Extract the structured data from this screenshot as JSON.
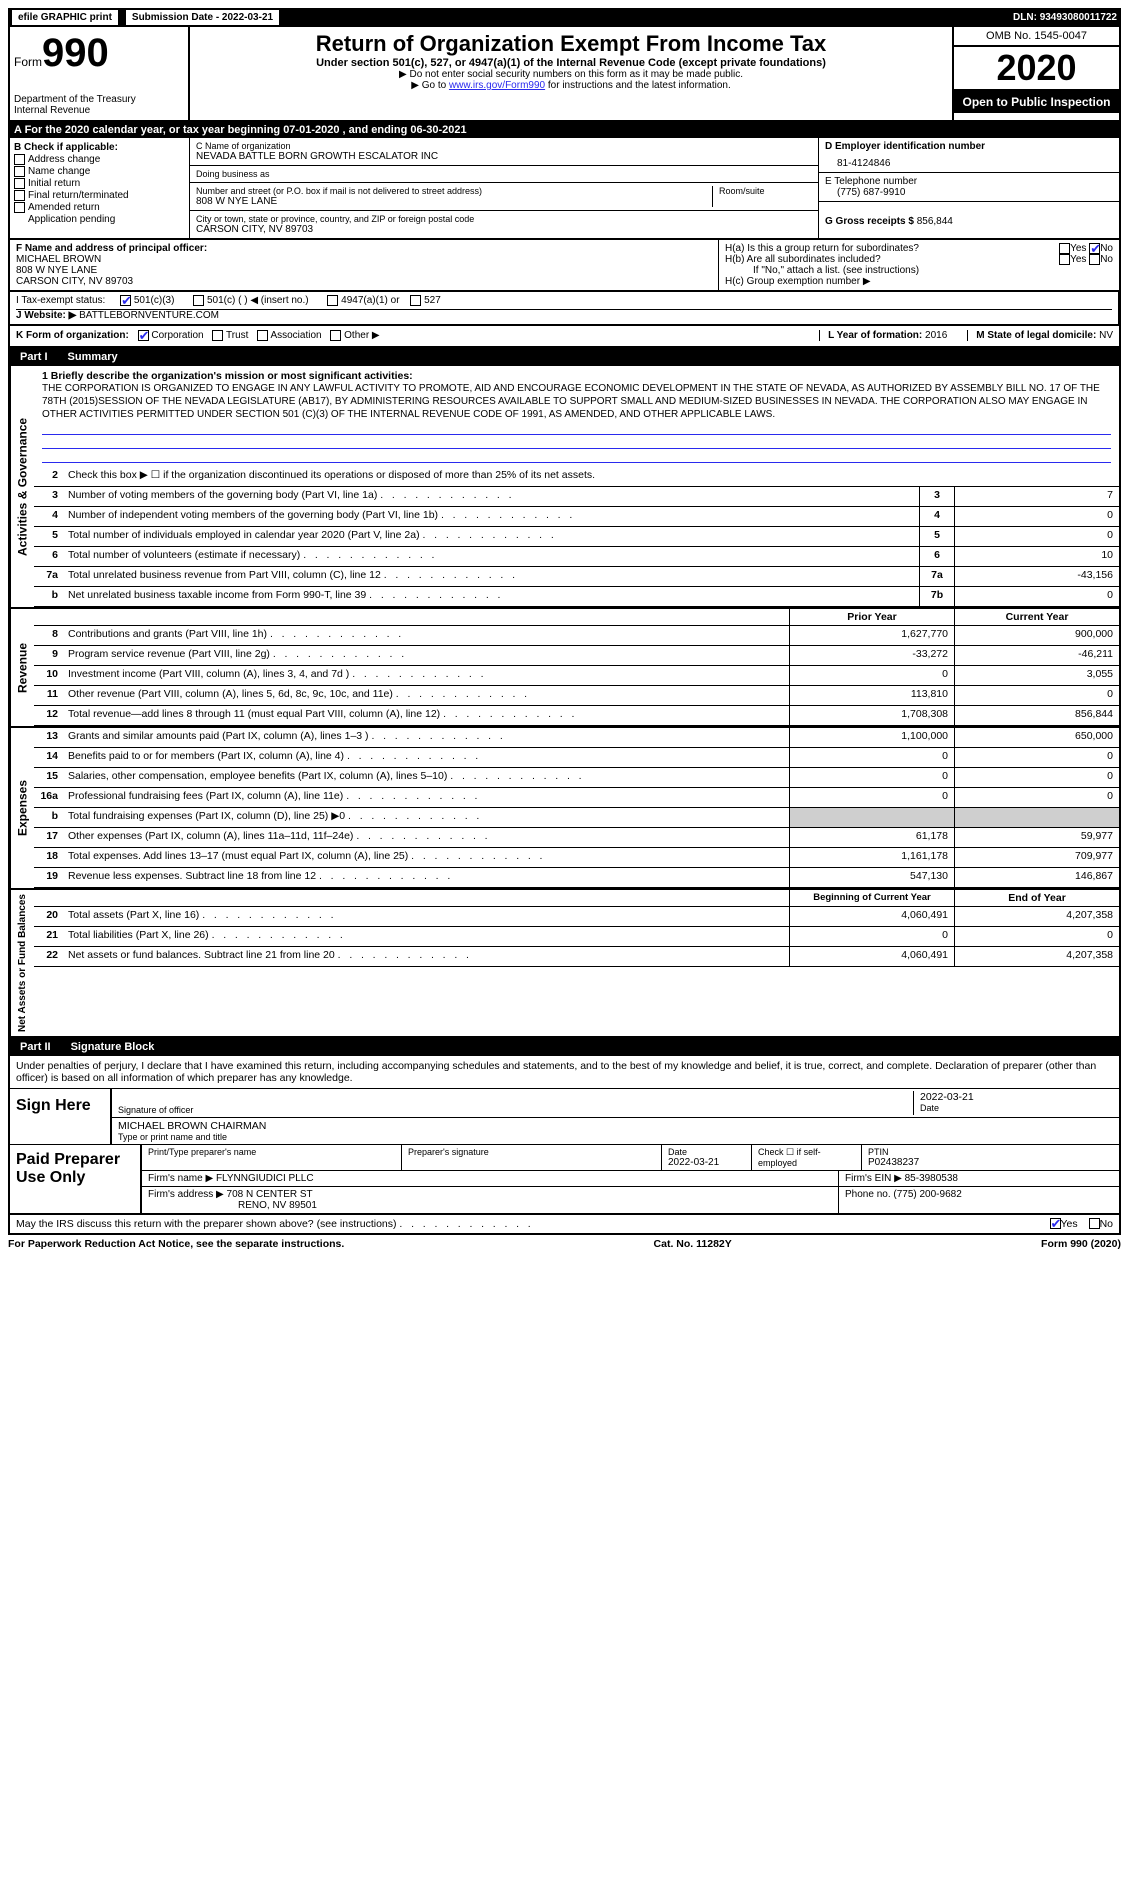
{
  "topbar": {
    "efile": "efile GRAPHIC print",
    "submission_label": "Submission Date - ",
    "submission_date": "2022-03-21",
    "dln_label": "DLN: ",
    "dln": "93493080011722"
  },
  "header": {
    "form_label": "Form",
    "form_num": "990",
    "dept": "Department of the Treasury\nInternal Revenue",
    "title": "Return of Organization Exempt From Income Tax",
    "subtitle": "Under section 501(c), 527, or 4947(a)(1) of the Internal Revenue Code (except private foundations)",
    "instr1": "▶ Do not enter social security numbers on this form as it may be made public.",
    "instr2_pre": "▶ Go to ",
    "instr2_link": "www.irs.gov/Form990",
    "instr2_post": " for instructions and the latest information.",
    "omb": "OMB No. 1545-0047",
    "year": "2020",
    "open": "Open to Public Inspection"
  },
  "section_a": {
    "bar": "A For the 2020 calendar year, or tax year beginning 07-01-2020    , and ending 06-30-2021",
    "b_label": "B Check if applicable:",
    "b_opts": [
      "Address change",
      "Name change",
      "Initial return",
      "Final return/terminated",
      "Amended return",
      "Application pending"
    ],
    "c_name_label": "C Name of organization",
    "c_name": "NEVADA BATTLE BORN GROWTH ESCALATOR INC",
    "c_dba_label": "Doing business as",
    "c_dba": "",
    "c_street_label": "Number and street (or P.O. box if mail is not delivered to street address)",
    "c_street": "808 W NYE LANE",
    "c_room_label": "Room/suite",
    "c_city_label": "City or town, state or province, country, and ZIP or foreign postal code",
    "c_city": "CARSON CITY, NV  89703",
    "d_label": "D Employer identification number",
    "d_value": "81-4124846",
    "e_label": "E Telephone number",
    "e_value": "(775) 687-9910",
    "g_label": "G Gross receipts $ ",
    "g_value": "856,844",
    "f_label": "F  Name and address of principal officer:",
    "f_name": "MICHAEL BROWN",
    "f_street": "808 W NYE LANE",
    "f_city": "CARSON CITY, NV  89703",
    "ha_label": "H(a)  Is this a group return for subordinates?",
    "hb_label": "H(b)  Are all subordinates included?",
    "h_note": "If \"No,\" attach a list. (see instructions)",
    "hc_label": "H(c)  Group exemption number ▶",
    "i_label": "I   Tax-exempt status:",
    "i_501c3": "501(c)(3)",
    "i_501c": "501(c) (  ) ◀ (insert no.)",
    "i_4947": "4947(a)(1) or",
    "i_527": "527",
    "j_label": "J   Website: ▶",
    "j_value": "BATTLEBORNVENTURE.COM",
    "k_label": "K Form of organization:",
    "k_opts": [
      "Corporation",
      "Trust",
      "Association",
      "Other ▶"
    ],
    "l_label": "L Year of formation: ",
    "l_value": "2016",
    "m_label": "M State of legal domicile: ",
    "m_value": "NV"
  },
  "part1": {
    "num": "Part I",
    "name": "Summary",
    "line1_label": "1  Briefly describe the organization's mission or most significant activities:",
    "mission": "THE CORPORATION IS ORGANIZED TO ENGAGE IN ANY LAWFUL ACTIVITY TO PROMOTE, AID AND ENCOURAGE ECONOMIC DEVELOPMENT IN THE STATE OF NEVADA, AS AUTHORIZED BY ASSEMBLY BILL NO. 17 OF THE 78TH (2015)SESSION OF THE NEVADA LEGISLATURE (AB17), BY ADMINISTERING RESOURCES AVAILABLE TO SUPPORT SMALL AND MEDIUM-SIZED BUSINESSES IN NEVADA. THE CORPORATION ALSO MAY ENGAGE IN OTHER ACTIVITIES PERMITTED UNDER SECTION 501 (C)(3) OF THE INTERNAL REVENUE CODE OF 1991, AS AMENDED, AND OTHER APPLICABLE LAWS.",
    "line2": "Check this box ▶ ☐  if the organization discontinued its operations or disposed of more than 25% of its net assets.",
    "vert_ag": "Activities & Governance",
    "vert_rev": "Revenue",
    "vert_exp": "Expenses",
    "vert_net": "Net Assets or Fund Balances",
    "rows_ag": [
      {
        "n": "3",
        "d": "Number of voting members of the governing body (Part VI, line 1a)",
        "nc": "3",
        "v": "7"
      },
      {
        "n": "4",
        "d": "Number of independent voting members of the governing body (Part VI, line 1b)",
        "nc": "4",
        "v": "0"
      },
      {
        "n": "5",
        "d": "Total number of individuals employed in calendar year 2020 (Part V, line 2a)",
        "nc": "5",
        "v": "0"
      },
      {
        "n": "6",
        "d": "Total number of volunteers (estimate if necessary)",
        "nc": "6",
        "v": "10"
      },
      {
        "n": "7a",
        "d": "Total unrelated business revenue from Part VIII, column (C), line 12",
        "nc": "7a",
        "v": "-43,156"
      },
      {
        "n": "b",
        "d": "Net unrelated business taxable income from Form 990-T, line 39",
        "nc": "7b",
        "v": "0"
      }
    ],
    "prior_year": "Prior Year",
    "current_year": "Current Year",
    "rows_rev": [
      {
        "n": "8",
        "d": "Contributions and grants (Part VIII, line 1h)",
        "p": "1,627,770",
        "c": "900,000"
      },
      {
        "n": "9",
        "d": "Program service revenue (Part VIII, line 2g)",
        "p": "-33,272",
        "c": "-46,211"
      },
      {
        "n": "10",
        "d": "Investment income (Part VIII, column (A), lines 3, 4, and 7d )",
        "p": "0",
        "c": "3,055"
      },
      {
        "n": "11",
        "d": "Other revenue (Part VIII, column (A), lines 5, 6d, 8c, 9c, 10c, and 11e)",
        "p": "113,810",
        "c": "0"
      },
      {
        "n": "12",
        "d": "Total revenue—add lines 8 through 11 (must equal Part VIII, column (A), line 12)",
        "p": "1,708,308",
        "c": "856,844"
      }
    ],
    "rows_exp": [
      {
        "n": "13",
        "d": "Grants and similar amounts paid (Part IX, column (A), lines 1–3 )",
        "p": "1,100,000",
        "c": "650,000"
      },
      {
        "n": "14",
        "d": "Benefits paid to or for members (Part IX, column (A), line 4)",
        "p": "0",
        "c": "0"
      },
      {
        "n": "15",
        "d": "Salaries, other compensation, employee benefits (Part IX, column (A), lines 5–10)",
        "p": "0",
        "c": "0"
      },
      {
        "n": "16a",
        "d": "Professional fundraising fees (Part IX, column (A), line 11e)",
        "p": "0",
        "c": "0"
      },
      {
        "n": "b",
        "d": "Total fundraising expenses (Part IX, column (D), line 25) ▶0",
        "p": "",
        "c": "",
        "gray": true
      },
      {
        "n": "17",
        "d": "Other expenses (Part IX, column (A), lines 11a–11d, 11f–24e)",
        "p": "61,178",
        "c": "59,977"
      },
      {
        "n": "18",
        "d": "Total expenses. Add lines 13–17 (must equal Part IX, column (A), line 25)",
        "p": "1,161,178",
        "c": "709,977"
      },
      {
        "n": "19",
        "d": "Revenue less expenses. Subtract line 18 from line 12",
        "p": "547,130",
        "c": "146,867"
      }
    ],
    "begin_year": "Beginning of Current Year",
    "end_year": "End of Year",
    "rows_net": [
      {
        "n": "20",
        "d": "Total assets (Part X, line 16)",
        "p": "4,060,491",
        "c": "4,207,358"
      },
      {
        "n": "21",
        "d": "Total liabilities (Part X, line 26)",
        "p": "0",
        "c": "0"
      },
      {
        "n": "22",
        "d": "Net assets or fund balances. Subtract line 21 from line 20",
        "p": "4,060,491",
        "c": "4,207,358"
      }
    ]
  },
  "part2": {
    "num": "Part II",
    "name": "Signature Block",
    "intro": "Under penalties of perjury, I declare that I have examined this return, including accompanying schedules and statements, and to the best of my knowledge and belief, it is true, correct, and complete. Declaration of preparer (other than officer) is based on all information of which preparer has any knowledge.",
    "sign_here": "Sign Here",
    "sig_officer_label": "Signature of officer",
    "sig_date": "2022-03-21",
    "date_label": "Date",
    "officer_name": "MICHAEL BROWN  CHAIRMAN",
    "officer_label": "Type or print name and title",
    "paid_prep": "Paid Preparer Use Only",
    "prep_name_label": "Print/Type preparer's name",
    "prep_sig_label": "Preparer's signature",
    "prep_date_label": "Date",
    "prep_date": "2022-03-21",
    "prep_check_label": "Check ☐ if self-employed",
    "ptin_label": "PTIN",
    "ptin": "P02438237",
    "firm_name_label": "Firm's name    ▶ ",
    "firm_name": "FLYNNGIUDICI PLLC",
    "firm_ein_label": "Firm's EIN ▶ ",
    "firm_ein": "85-3980538",
    "firm_addr_label": "Firm's address ▶ ",
    "firm_addr1": "708 N CENTER ST",
    "firm_addr2": "RENO, NV  89501",
    "firm_phone_label": "Phone no. ",
    "firm_phone": "(775) 200-9682",
    "discuss": "May the IRS discuss this return with the preparer shown above? (see instructions)",
    "yes": "Yes",
    "no": "No"
  },
  "footer": {
    "left": "For Paperwork Reduction Act Notice, see the separate instructions.",
    "mid": "Cat. No. 11282Y",
    "right": "Form 990 (2020)"
  },
  "colors": {
    "link": "#2a2aee",
    "gray": "#cfcfcf"
  }
}
